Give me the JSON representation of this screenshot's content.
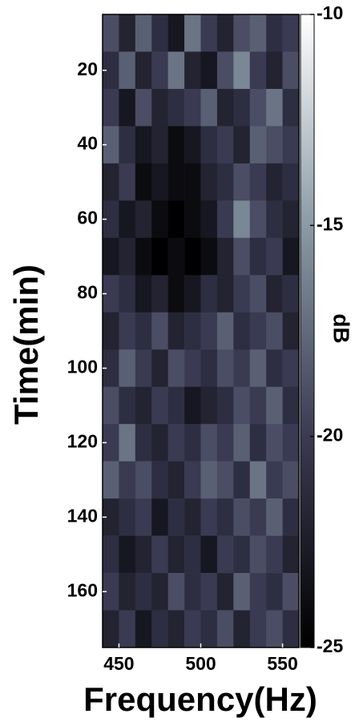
{
  "chart_data": {
    "type": "heatmap",
    "xlabel": "Frequency(Hz)",
    "ylabel": "Time(min)",
    "colorbar_label": "dB",
    "x": [
      445,
      455,
      465,
      475,
      485,
      495,
      505,
      515,
      525,
      535,
      545,
      555
    ],
    "y": [
      10,
      20,
      30,
      40,
      50,
      60,
      70,
      80,
      90,
      100,
      110,
      120,
      130,
      140,
      150,
      160,
      170
    ],
    "z": [
      [
        -19,
        -22,
        -18,
        -21,
        -23,
        -17,
        -20,
        -22,
        -19,
        -18,
        -21,
        -20
      ],
      [
        -21,
        -18,
        -22,
        -20,
        -17,
        -22,
        -23,
        -19,
        -16,
        -20,
        -22,
        -19
      ],
      [
        -20,
        -23,
        -19,
        -22,
        -21,
        -20,
        -18,
        -22,
        -21,
        -19,
        -17,
        -21
      ],
      [
        -18,
        -21,
        -23,
        -22,
        -24,
        -23,
        -21,
        -20,
        -22,
        -18,
        -19,
        -20
      ],
      [
        -22,
        -20,
        -24,
        -23,
        -24,
        -24,
        -22,
        -21,
        -19,
        -20,
        -22,
        -21
      ],
      [
        -21,
        -23,
        -22,
        -24,
        -25,
        -24,
        -23,
        -20,
        -16,
        -19,
        -21,
        -22
      ],
      [
        -23,
        -22,
        -24,
        -25,
        -24,
        -25,
        -24,
        -22,
        -19,
        -21,
        -20,
        -23
      ],
      [
        -20,
        -21,
        -23,
        -22,
        -24,
        -23,
        -21,
        -22,
        -20,
        -19,
        -22,
        -21
      ],
      [
        -22,
        -20,
        -21,
        -19,
        -22,
        -21,
        -20,
        -18,
        -21,
        -20,
        -19,
        -22
      ],
      [
        -21,
        -18,
        -20,
        -22,
        -19,
        -20,
        -21,
        -19,
        -20,
        -18,
        -21,
        -20
      ],
      [
        -19,
        -21,
        -22,
        -20,
        -21,
        -23,
        -22,
        -21,
        -19,
        -20,
        -18,
        -21
      ],
      [
        -20,
        -17,
        -21,
        -22,
        -20,
        -21,
        -19,
        -20,
        -18,
        -21,
        -19,
        -20
      ],
      [
        -18,
        -20,
        -19,
        -21,
        -22,
        -20,
        -18,
        -19,
        -21,
        -17,
        -20,
        -19
      ],
      [
        -22,
        -21,
        -20,
        -23,
        -21,
        -22,
        -20,
        -21,
        -19,
        -20,
        -18,
        -21
      ],
      [
        -21,
        -23,
        -22,
        -20,
        -22,
        -21,
        -23,
        -20,
        -21,
        -19,
        -20,
        -22
      ],
      [
        -20,
        -22,
        -21,
        -22,
        -19,
        -21,
        -20,
        -22,
        -18,
        -20,
        -21,
        -19
      ],
      [
        -22,
        -20,
        -23,
        -21,
        -22,
        -20,
        -21,
        -19,
        -22,
        -20,
        -19,
        -21
      ]
    ],
    "xlim": [
      440,
      560
    ],
    "xticks": [
      450,
      500,
      550
    ],
    "ylim": [
      5,
      175
    ],
    "yticks": [
      20,
      40,
      60,
      80,
      100,
      120,
      140,
      160
    ],
    "y_inverted": true,
    "clim": [
      -25,
      -10
    ],
    "cticks": [
      -25,
      -20,
      -15,
      -10
    ],
    "colormap": [
      "#000000",
      "#3a3a52",
      "#8a9aa6",
      "#ffffff"
    ]
  }
}
